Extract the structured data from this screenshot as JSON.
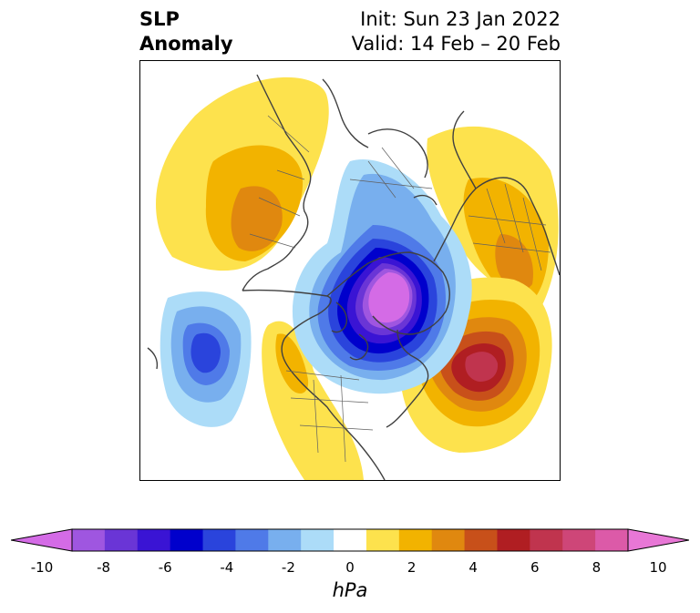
{
  "header": {
    "variable": "SLP",
    "kind": "Anomaly",
    "init": "Init: Sun 23 Jan 2022",
    "valid": "Valid: 14 Feb – 20 Feb"
  },
  "colorbar": {
    "unit": "hPa",
    "tick_labels": [
      "-10",
      "-8",
      "-6",
      "-4",
      "-2",
      "0",
      "2",
      "4",
      "6",
      "8",
      "10"
    ],
    "levels": [
      -10,
      -9,
      -8,
      -7,
      -6,
      -5,
      -4,
      -3,
      -2,
      -1,
      1,
      2,
      3,
      4,
      5,
      6,
      7,
      8,
      9,
      10
    ],
    "colors": [
      "#d46be6",
      "#9f56e0",
      "#6a35d6",
      "#3a14d4",
      "#0000cc",
      "#2a44dc",
      "#4f7ae8",
      "#78afee",
      "#acdcf8",
      "#ffffff",
      "#fde24d",
      "#f2b300",
      "#e0880f",
      "#c8501a",
      "#b01e22",
      "#c0344e",
      "#ce4678",
      "#dc5aa8",
      "#e877d6"
    ],
    "extend": "both"
  },
  "map": {
    "projection": "north-polar-stereographic",
    "region": "Northern Hemisphere",
    "features": [
      {
        "label": "negative anomaly centre over Arctic / Greenland",
        "min_hpa": -10
      },
      {
        "label": "negative anomaly centre over North Pacific",
        "min_hpa": -6
      },
      {
        "label": "positive anomaly centre over North Atlantic",
        "max_hpa": 7
      },
      {
        "label": "positive anomaly over Siberia / Far East",
        "max_hpa": 4
      },
      {
        "label": "positive anomaly over Scandinavia / Russia",
        "max_hpa": 4
      },
      {
        "label": "positive anomaly over central / southern United States",
        "max_hpa": 3
      }
    ]
  }
}
